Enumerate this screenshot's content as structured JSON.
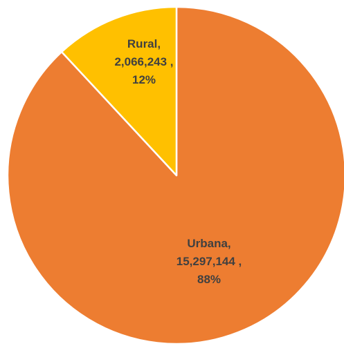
{
  "chart_data": {
    "type": "pie",
    "title": "",
    "start_angle_deg": 0,
    "direction": "clockwise",
    "slices": [
      {
        "label": "Urbana",
        "value": 15297144,
        "value_text": "15,297,144",
        "percent_text": "88%",
        "color": "#ED7D31",
        "label_lines": [
          "Urbana,",
          "15,297,144 ,",
          "88%"
        ]
      },
      {
        "label": "Rural",
        "value": 2066243,
        "value_text": "2,066,243",
        "percent_text": "12%",
        "color": "#FFC000",
        "label_lines": [
          "Rural,",
          "2,066,243 ,",
          "12%"
        ]
      }
    ],
    "slice_border_color": "#FFFFFF",
    "label_color": "#404040"
  }
}
